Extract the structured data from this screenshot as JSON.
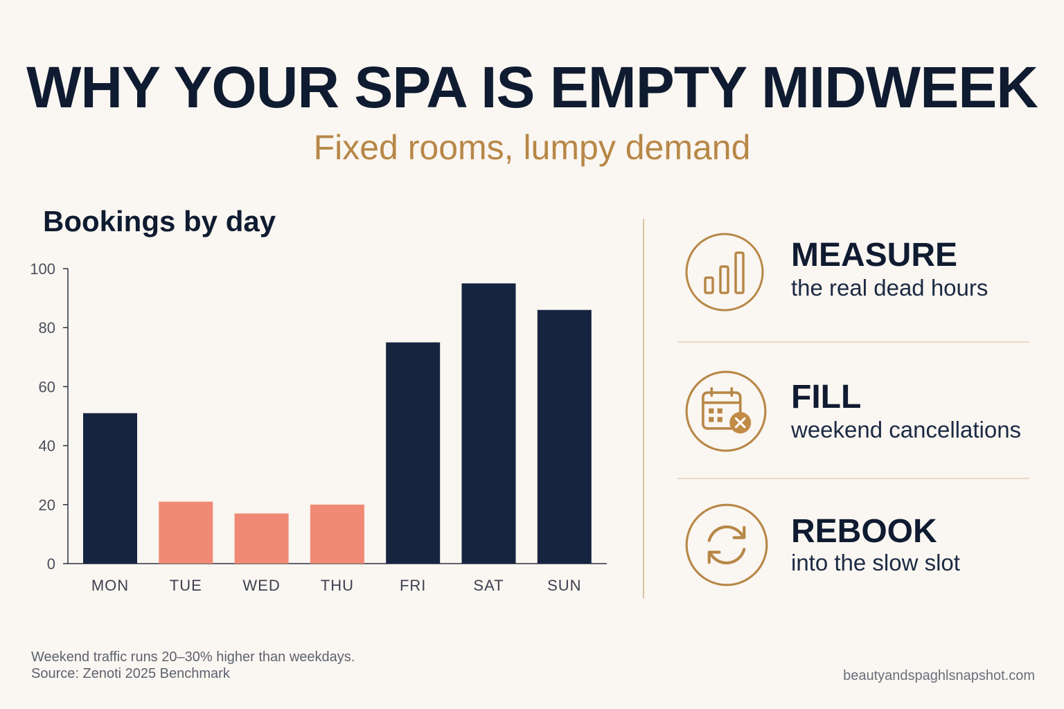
{
  "header": {
    "title": "WHY YOUR SPA IS EMPTY MIDWEEK",
    "subtitle": "Fixed rooms, lumpy demand"
  },
  "chart_data": {
    "type": "bar",
    "title": "Bookings by day",
    "categories": [
      "MON",
      "TUE",
      "WED",
      "THU",
      "FRI",
      "SAT",
      "SUN"
    ],
    "values": [
      51,
      21,
      17,
      20,
      75,
      95,
      86
    ],
    "highlight": [
      false,
      true,
      true,
      true,
      false,
      false,
      false
    ],
    "ylim": [
      0,
      100
    ],
    "yticks": [
      0,
      20,
      40,
      60,
      80,
      100
    ],
    "xlabel": "",
    "ylabel": "",
    "grid": false,
    "colors": {
      "default": "#162440",
      "highlight": "#f08a75"
    }
  },
  "tips": [
    {
      "icon": "bar-chart-icon",
      "heading": "MEASURE",
      "text": "the real dead hours"
    },
    {
      "icon": "calendar-cancel-icon",
      "heading": "FILL",
      "text": "weekend cancellations"
    },
    {
      "icon": "refresh-cycle-icon",
      "heading": "REBOOK",
      "text": "into the slow slot"
    }
  ],
  "footer": {
    "note": "Weekend traffic runs 20–30% higher than weekdays.",
    "source": "Source: Zenoti 2025 Benchmark",
    "site": "beautyandspaghlsnapshot.com"
  },
  "colors": {
    "accent": "#b78747",
    "navy": "#0f1b30",
    "background": "#faf6f1"
  }
}
